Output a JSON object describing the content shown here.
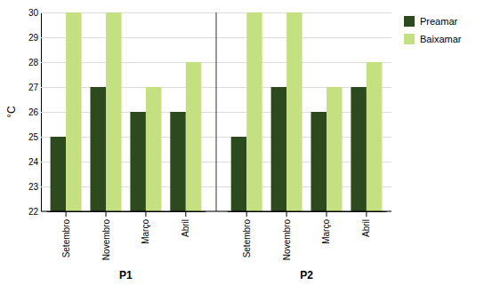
{
  "chart_data": {
    "type": "bar",
    "categories": [
      "Setembro",
      "Novembro",
      "Março",
      "Abril",
      "Setembro",
      "Novembro",
      "Março",
      "Abril"
    ],
    "groups": [
      "P1",
      "P2"
    ],
    "series": [
      {
        "name": "Preamar",
        "color": "#2d4a1e",
        "values": [
          25,
          27,
          26,
          26,
          25,
          27,
          26,
          27
        ]
      },
      {
        "name": "Baixamar",
        "color": "#c5e080",
        "values": [
          30,
          30,
          27,
          28,
          30,
          30,
          27,
          28
        ]
      }
    ],
    "y_label": "°C",
    "ylim": [
      22,
      30
    ],
    "yticks": [
      22,
      23,
      24,
      25,
      26,
      27,
      28,
      29,
      30
    ],
    "grid": true,
    "legend": "upper right"
  }
}
